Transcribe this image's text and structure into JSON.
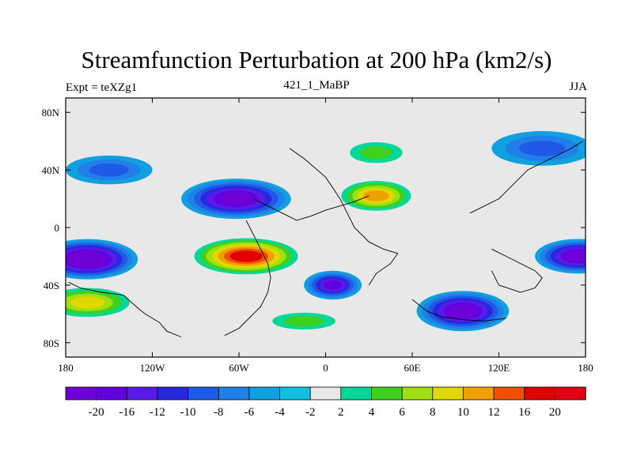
{
  "chart_data": {
    "type": "heatmap",
    "title": "Streamfunction Perturbation at 200 hPa (km2/s)",
    "left_label": "Expt = teXZg1",
    "center_label": "421_1_MaBP",
    "right_label": "JJA",
    "x": {
      "range": [
        -180,
        180
      ],
      "ticks": [
        -180,
        -120,
        -60,
        0,
        60,
        120,
        180
      ],
      "tick_labels": [
        "180",
        "120W",
        "60W",
        "0",
        "60E",
        "120E",
        "180"
      ]
    },
    "y": {
      "range": [
        -90,
        90
      ],
      "ticks": [
        80,
        40,
        0,
        -40,
        -80
      ],
      "tick_labels": [
        "80N",
        "40N",
        "0",
        "40S",
        "80S"
      ]
    },
    "colorbar": {
      "levels": [
        -20,
        -16,
        -12,
        -10,
        -8,
        -6,
        -4,
        -2,
        2,
        4,
        6,
        8,
        10,
        12,
        16,
        20
      ],
      "labels": [
        "-20",
        "-16",
        "-12",
        "-10",
        "-8",
        "-6",
        "-4",
        "-2",
        "2",
        "4",
        "6",
        "8",
        "10",
        "12",
        "16",
        "20"
      ],
      "colors": [
        "#7000d8",
        "#6400e0",
        "#5a1ae8",
        "#2828e0",
        "#1e5ae6",
        "#2080e8",
        "#10a0e0",
        "#10c0e0",
        "#e8e8e8",
        "#00d89a",
        "#40d020",
        "#a0e010",
        "#e0d800",
        "#f0a000",
        "#f05000",
        "#e00000",
        "#e00010"
      ]
    },
    "features": [
      {
        "name": "low-north-america",
        "lon": -62,
        "lat": 20,
        "value": -16,
        "ry": 14,
        "rx": 38
      },
      {
        "name": "high-tibet",
        "lon": 35,
        "lat": 22,
        "value": 13,
        "ry": 12,
        "rx": 28
      },
      {
        "name": "high-south-atlantic",
        "lon": -55,
        "lat": -20,
        "value": 20,
        "ry": 14,
        "rx": 40
      },
      {
        "name": "low-indian-ocean-south",
        "lon": 95,
        "lat": -58,
        "value": -16,
        "ry": 14,
        "rx": 32
      },
      {
        "name": "low-west-pacific-edge",
        "lon": -165,
        "lat": -22,
        "value": -20,
        "ry": 14,
        "rx": 35
      },
      {
        "name": "low-east-pacific-edge",
        "lon": 175,
        "lat": -20,
        "value": -16,
        "ry": 12,
        "rx": 30
      },
      {
        "name": "high-southern-ocean",
        "lon": -165,
        "lat": -52,
        "value": 10,
        "ry": 12,
        "rx": 35
      },
      {
        "name": "high-arabia-north",
        "lon": 35,
        "lat": 52,
        "value": 6,
        "ry": 10,
        "rx": 25
      },
      {
        "name": "low-south-atlantic",
        "lon": 5,
        "lat": -40,
        "value": -12,
        "ry": 10,
        "rx": 20
      },
      {
        "name": "high-south-america",
        "lon": -15,
        "lat": -65,
        "value": 6,
        "ry": 8,
        "rx": 30
      },
      {
        "name": "low-pacific-north",
        "lon": 150,
        "lat": 55,
        "value": -6,
        "ry": 12,
        "rx": 35
      },
      {
        "name": "low-atlantic-north",
        "lon": -150,
        "lat": 40,
        "value": -6,
        "ry": 10,
        "rx": 30
      }
    ]
  }
}
